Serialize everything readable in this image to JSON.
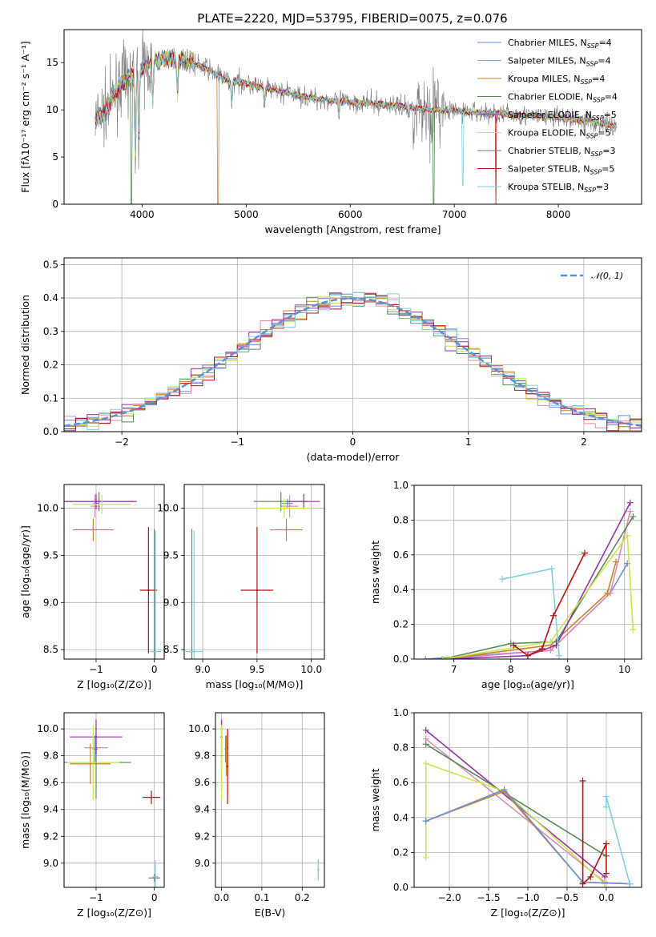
{
  "title": "PLATE=2220, MJD=53795, FIBERID=0075, z=0.076",
  "colors": {
    "chabrier_miles": "#6b8fd9",
    "salpeter_miles": "#e58ab8",
    "kroupa_miles": "#c8862a",
    "chabrier_elodie": "#5a8a5a",
    "salpeter_elodie": "#9b2fae",
    "kroupa_elodie": "#c9e84a",
    "chabrier_stelib": "#7a7a7a",
    "salpeter_stelib": "#b81414",
    "kroupa_stelib": "#7fd3d8",
    "gaussian": "#5b8fd6"
  },
  "legend_spectrum": [
    {
      "key": "chabrier_miles",
      "text": "Chabrier MILES, N",
      "sub": "SSP",
      "tail": "=4"
    },
    {
      "key": "salpeter_miles",
      "text": "Salpeter MILES, N",
      "sub": "SSP",
      "tail": "=4"
    },
    {
      "key": "kroupa_miles",
      "text": "Kroupa MILES, N",
      "sub": "SSP",
      "tail": "=4"
    },
    {
      "key": "chabrier_elodie",
      "text": "Chabrier ELODIE, N",
      "sub": "SSP",
      "tail": "=4"
    },
    {
      "key": "salpeter_elodie",
      "text": "Salpeter ELODIE, N",
      "sub": "SSP",
      "tail": "=5"
    },
    {
      "key": "kroupa_elodie",
      "text": "Kroupa ELODIE, N",
      "sub": "SSP",
      "tail": "=5"
    },
    {
      "key": "chabrier_stelib",
      "text": "Chabrier STELIB, N",
      "sub": "SSP",
      "tail": "=3"
    },
    {
      "key": "salpeter_stelib",
      "text": "Salpeter STELIB, N",
      "sub": "SSP",
      "tail": "=5"
    },
    {
      "key": "kroupa_stelib",
      "text": "Kroupa STELIB, N",
      "sub": "SSP",
      "tail": "=3"
    }
  ],
  "legend_hist": "𝒩(0, 1)",
  "chart_data": [
    {
      "id": "spectrum",
      "type": "line",
      "xlabel": "wavelength [Angstrom, rest frame]",
      "ylabel": "Flux [fλ10⁻¹⁷ erg cm⁻² s⁻¹ A⁻¹]",
      "xlim": [
        3250,
        8800
      ],
      "ylim": [
        0,
        18.5
      ],
      "xticks": [
        4000,
        5000,
        6000,
        7000,
        8000
      ],
      "yticks": [
        0,
        5,
        10,
        15
      ],
      "grid": false,
      "legend": "top-right",
      "continuum": {
        "x": [
          3550,
          3650,
          3800,
          3950,
          4050,
          4200,
          4400,
          4600,
          4800,
          5000,
          5300,
          5600,
          5900,
          6200,
          6500,
          6800,
          7100,
          7400,
          7700,
          8000,
          8300,
          8550
        ],
        "y": [
          9.0,
          10.0,
          13.0,
          13.8,
          14.8,
          15.5,
          15.3,
          14.5,
          13.2,
          12.8,
          12.0,
          11.3,
          10.9,
          10.7,
          10.4,
          10.0,
          9.8,
          9.6,
          9.4,
          9.2,
          8.8,
          8.3
        ]
      }
    },
    {
      "id": "residual_hist",
      "type": "bar",
      "xlabel": "(data-model)/error",
      "ylabel": "Normed distribution",
      "xlim": [
        -2.5,
        2.5
      ],
      "ylim": [
        0,
        0.52
      ],
      "xticks": [
        -2,
        -1,
        0,
        1,
        2
      ],
      "yticks": [
        0.0,
        0.1,
        0.2,
        0.3,
        0.4,
        0.5
      ],
      "grid": true,
      "legend": "top-right",
      "bin_width": 0.1,
      "bin_start": -2.5
    },
    {
      "id": "age_vs_Z",
      "type": "scatter",
      "xlabel": "Z [log₁₀(Z/Z⊙)]",
      "ylabel": "age  [log₁₀(age/yr)]",
      "xlim": [
        -1.55,
        0.17
      ],
      "ylim": [
        8.4,
        10.25
      ],
      "xticks": [
        -1,
        0
      ],
      "yticks": [
        8.5,
        9.0,
        9.5,
        10.0
      ],
      "grid": true,
      "points": [
        {
          "key": "chabrier_miles",
          "x": -1.0,
          "y": 10.05,
          "xerr": 0.05,
          "yerr": 0.05
        },
        {
          "key": "salpeter_miles",
          "x": -1.02,
          "y": 10.02,
          "xerr": 0.08,
          "yerr": 0.12
        },
        {
          "key": "kroupa_miles",
          "x": -1.05,
          "y": 9.77,
          "xerr": 0.35,
          "yerr": 0.12
        },
        {
          "key": "chabrier_elodie",
          "x": -0.95,
          "y": 10.07,
          "xerr": 0.6,
          "yerr": 0.1
        },
        {
          "key": "salpeter_elodie",
          "x": -1.0,
          "y": 10.07,
          "xerr": 0.7,
          "yerr": 0.08
        },
        {
          "key": "kroupa_elodie",
          "x": -0.9,
          "y": 10.04,
          "xerr": 0.5,
          "yerr": 0.1
        },
        {
          "key": "chabrier_stelib",
          "x": 0.0,
          "y": 8.48,
          "xerr": 0.02,
          "yerr": 1.3
        },
        {
          "key": "salpeter_stelib",
          "x": -0.1,
          "y": 9.13,
          "xerr": 0.15,
          "yerr": 0.67
        },
        {
          "key": "kroupa_stelib",
          "x": 0.02,
          "y": 8.48,
          "xerr": 0.1,
          "yerr": 1.28
        }
      ]
    },
    {
      "id": "age_vs_mass",
      "type": "scatter",
      "xlabel": "mass [log₁₀(M/M⊙)]",
      "ylabel": "",
      "xlim": [
        8.83,
        10.12
      ],
      "ylim": [
        8.4,
        10.25
      ],
      "xticks": [
        9.0,
        9.5,
        10.0
      ],
      "yticks": [
        8.5,
        9.0,
        9.5,
        10.0
      ],
      "grid": true,
      "points": [
        {
          "key": "chabrier_miles",
          "x": 9.78,
          "y": 10.05,
          "xerr": 0.05,
          "yerr": 0.05
        },
        {
          "key": "salpeter_miles",
          "x": 9.8,
          "y": 10.02,
          "xerr": 0.08,
          "yerr": 0.12
        },
        {
          "key": "kroupa_miles",
          "x": 9.77,
          "y": 9.77,
          "xerr": 0.15,
          "yerr": 0.12
        },
        {
          "key": "chabrier_elodie",
          "x": 9.72,
          "y": 10.07,
          "xerr": 0.25,
          "yerr": 0.1
        },
        {
          "key": "salpeter_elodie",
          "x": 9.93,
          "y": 10.07,
          "xerr": 0.15,
          "yerr": 0.08
        },
        {
          "key": "kroupa_elodie",
          "x": 9.75,
          "y": 10.0,
          "xerr": 0.25,
          "yerr": 0.1
        },
        {
          "key": "chabrier_stelib",
          "x": 8.9,
          "y": 8.48,
          "xerr": 0.03,
          "yerr": 1.3
        },
        {
          "key": "salpeter_stelib",
          "x": 9.5,
          "y": 9.13,
          "xerr": 0.15,
          "yerr": 0.67
        },
        {
          "key": "kroupa_stelib",
          "x": 8.92,
          "y": 8.48,
          "xerr": 0.08,
          "yerr": 1.28
        }
      ]
    },
    {
      "id": "weight_vs_age",
      "type": "line",
      "xlabel": "age  [log₁₀(age/yr)]",
      "ylabel": "mass weight",
      "xlim": [
        6.3,
        10.3
      ],
      "ylim": [
        0,
        1.0
      ],
      "xticks": [
        7,
        8,
        9,
        10
      ],
      "yticks": [
        0.0,
        0.2,
        0.4,
        0.6,
        0.8,
        1.0
      ],
      "grid": true,
      "series": [
        {
          "key": "chabrier_miles",
          "x": [
            6.5,
            8.7,
            9.75,
            10.05
          ],
          "y": [
            0.0,
            0.05,
            0.38,
            0.55
          ]
        },
        {
          "key": "salpeter_miles",
          "x": [
            6.8,
            8.7,
            9.75,
            10.1
          ],
          "y": [
            0.0,
            0.05,
            0.38,
            0.85
          ]
        },
        {
          "key": "kroupa_miles",
          "x": [
            6.8,
            8.7,
            9.7,
            9.85
          ],
          "y": [
            0.0,
            0.08,
            0.38,
            0.56
          ]
        },
        {
          "key": "chabrier_elodie",
          "x": [
            6.8,
            8.0,
            8.8,
            10.15
          ],
          "y": [
            0.0,
            0.09,
            0.1,
            0.82
          ]
        },
        {
          "key": "salpeter_elodie",
          "x": [
            6.8,
            8.3,
            8.8,
            10.1
          ],
          "y": [
            0.0,
            0.02,
            0.08,
            0.9
          ]
        },
        {
          "key": "kroupa_elodie",
          "x": [
            6.8,
            8.7,
            10.05,
            10.15
          ],
          "y": [
            0.0,
            0.1,
            0.71,
            0.17
          ]
        },
        {
          "key": "kroupa_stelib",
          "x": [
            7.85,
            8.72,
            8.85
          ],
          "y": [
            0.46,
            0.52,
            0.02
          ]
        },
        {
          "key": "salpeter_stelib",
          "x": [
            8.05,
            8.3,
            8.55,
            8.75,
            9.3
          ],
          "y": [
            0.08,
            0.02,
            0.06,
            0.25,
            0.61
          ]
        }
      ]
    },
    {
      "id": "mass_vs_Z",
      "type": "scatter",
      "xlabel": "Z [log₁₀(Z/Z⊙)]",
      "ylabel": "mass [log₁₀(M/M⊙)]",
      "xlim": [
        -1.55,
        0.17
      ],
      "ylim": [
        8.82,
        10.12
      ],
      "xticks": [
        -1,
        0
      ],
      "yticks": [
        9.0,
        9.2,
        9.4,
        9.6,
        9.8,
        10.0
      ],
      "grid": true,
      "points": [
        {
          "key": "chabrier_miles",
          "x": -1.02,
          "y": 9.85,
          "xerr": 0.05,
          "yerr": 0.1
        },
        {
          "key": "salpeter_miles",
          "x": -1.0,
          "y": 9.86,
          "xerr": 0.2,
          "yerr": 0.1
        },
        {
          "key": "kroupa_miles",
          "x": -1.1,
          "y": 9.74,
          "xerr": 0.35,
          "yerr": 0.15
        },
        {
          "key": "chabrier_elodie",
          "x": -1.0,
          "y": 9.75,
          "xerr": 0.6,
          "yerr": 0.27
        },
        {
          "key": "salpeter_elodie",
          "x": -1.0,
          "y": 9.94,
          "xerr": 0.45,
          "yerr": 0.13
        },
        {
          "key": "kroupa_elodie",
          "x": -1.05,
          "y": 9.75,
          "xerr": 0.45,
          "yerr": 0.28
        },
        {
          "key": "chabrier_stelib",
          "x": 0.0,
          "y": 8.89,
          "xerr": 0.1,
          "yerr": 0.03
        },
        {
          "key": "salpeter_stelib",
          "x": -0.05,
          "y": 9.49,
          "xerr": 0.15,
          "yerr": 0.05
        },
        {
          "key": "kroupa_stelib",
          "x": 0.02,
          "y": 8.9,
          "xerr": 0.05,
          "yerr": 0.12
        }
      ]
    },
    {
      "id": "mass_vs_ebv",
      "type": "scatter",
      "xlabel": "E(B-V)",
      "ylabel": "",
      "xlim": [
        -0.015,
        0.255
      ],
      "ylim": [
        8.82,
        10.12
      ],
      "xticks": [
        0.0,
        0.1,
        0.2
      ],
      "yticks": [
        9.0,
        9.2,
        9.4,
        9.6,
        9.8,
        10.0
      ],
      "grid": true,
      "points": [
        {
          "key": "chabrier_miles",
          "x": 0.01,
          "y": 9.85,
          "xerr": 0.0,
          "yerr": 0.1
        },
        {
          "key": "salpeter_miles",
          "x": 0.015,
          "y": 9.86,
          "xerr": 0.0,
          "yerr": 0.14
        },
        {
          "key": "kroupa_miles",
          "x": 0.012,
          "y": 9.8,
          "xerr": 0.0,
          "yerr": 0.15
        },
        {
          "key": "chabrier_elodie",
          "x": 0.0,
          "y": 9.8,
          "xerr": 0.0,
          "yerr": 0.27
        },
        {
          "key": "salpeter_elodie",
          "x": 0.0,
          "y": 9.94,
          "xerr": 0.0,
          "yerr": 0.13
        },
        {
          "key": "kroupa_elodie",
          "x": 0.0,
          "y": 9.75,
          "xerr": 0.0,
          "yerr": 0.28
        },
        {
          "key": "chabrier_stelib",
          "x": 0.24,
          "y": 8.95,
          "xerr": 0.0,
          "yerr": 0.07
        },
        {
          "key": "salpeter_stelib",
          "x": 0.015,
          "y": 9.72,
          "xerr": 0.0,
          "yerr": 0.28
        },
        {
          "key": "kroupa_stelib",
          "x": 0.24,
          "y": 8.95,
          "xerr": 0.0,
          "yerr": 0.08
        }
      ]
    },
    {
      "id": "weight_vs_Z",
      "type": "line",
      "xlabel": "Z [log₁₀(Z/Z⊙)]",
      "ylabel": "mass weight",
      "xlim": [
        -2.45,
        0.45
      ],
      "ylim": [
        0,
        1.0
      ],
      "xticks": [
        -2.0,
        -1.5,
        -1.0,
        -0.5,
        0.0
      ],
      "yticks": [
        0.0,
        0.2,
        0.4,
        0.6,
        0.8,
        1.0
      ],
      "grid": true,
      "series": [
        {
          "key": "salpeter_elodie",
          "x": [
            -2.3,
            -0.02
          ],
          "y": [
            0.9,
            0.06
          ]
        },
        {
          "key": "salpeter_miles",
          "x": [
            -2.3,
            -0.02
          ],
          "y": [
            0.85,
            0.03
          ]
        },
        {
          "key": "chabrier_elodie",
          "x": [
            -2.3,
            0.0
          ],
          "y": [
            0.82,
            0.18
          ]
        },
        {
          "key": "kroupa_elodie",
          "x": [
            -2.3,
            -2.3,
            -1.3,
            -0.02
          ],
          "y": [
            0.17,
            0.71,
            0.55,
            0.02
          ]
        },
        {
          "key": "kroupa_miles",
          "x": [
            -2.3,
            -1.3,
            -0.3,
            0.3
          ],
          "y": [
            0.38,
            0.55,
            0.03,
            0.02
          ]
        },
        {
          "key": "chabrier_miles",
          "x": [
            -2.3,
            -1.3,
            -0.3,
            0.3
          ],
          "y": [
            0.38,
            0.56,
            0.03,
            0.02
          ]
        },
        {
          "key": "kroupa_stelib",
          "x": [
            0.0,
            0.0,
            0.3
          ],
          "y": [
            0.46,
            0.52,
            0.02
          ]
        },
        {
          "key": "salpeter_stelib",
          "x": [
            -0.3,
            -0.3,
            -0.2,
            0.0,
            0.0
          ],
          "y": [
            0.61,
            0.02,
            0.06,
            0.25,
            0.08
          ]
        }
      ]
    }
  ]
}
